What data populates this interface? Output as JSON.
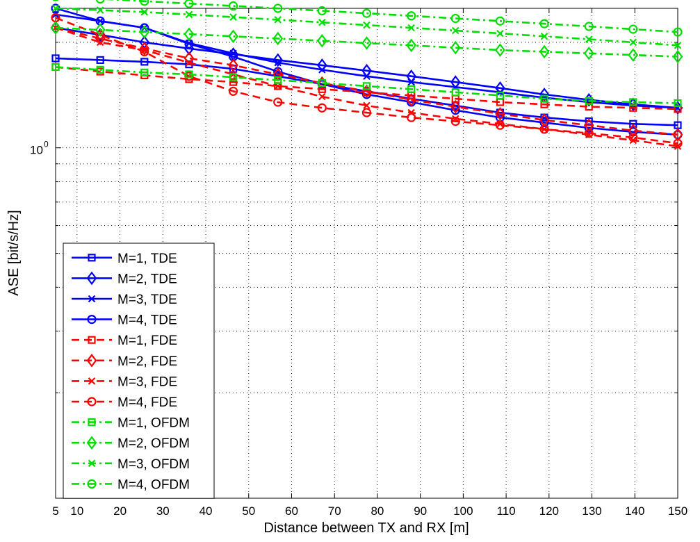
{
  "chart_data": {
    "type": "line",
    "xlabel": "Distance between TX and RX [m]",
    "ylabel": "ASE [bit/s/Hz]",
    "xlim": [
      5,
      150
    ],
    "ylim": [
      0.1,
      2.5
    ],
    "yscale": "log",
    "grid": true,
    "legend_position": "bottom-left",
    "x_ticks": [
      5,
      10,
      20,
      30,
      40,
      50,
      60,
      70,
      80,
      90,
      100,
      110,
      120,
      130,
      140,
      150
    ],
    "x_tick_labels": [
      "5",
      "10",
      "20",
      "30",
      "40",
      "50",
      "60",
      "70",
      "80",
      "90",
      "100",
      "110",
      "120",
      "130",
      "140",
      "150"
    ],
    "y_tick_label": {
      "base": "10",
      "exp": "0",
      "value": 1.0
    },
    "x": [
      5,
      15.4,
      25.7,
      36.1,
      46.4,
      56.8,
      67.1,
      77.5,
      87.9,
      98.2,
      108.6,
      118.9,
      129.3,
      139.6,
      150
    ],
    "series": [
      {
        "name": "M=1, TDE",
        "color": "#0000ff",
        "dash": "solid",
        "marker": "square",
        "values": [
          1.8,
          1.78,
          1.76,
          1.73,
          1.68,
          1.6,
          1.52,
          1.45,
          1.38,
          1.32,
          1.26,
          1.22,
          1.19,
          1.17,
          1.16
        ]
      },
      {
        "name": "M=2, TDE",
        "color": "#0000ff",
        "dash": "solid",
        "marker": "diamond",
        "values": [
          2.2,
          2.1,
          2.0,
          1.92,
          1.85,
          1.78,
          1.72,
          1.66,
          1.6,
          1.54,
          1.48,
          1.42,
          1.37,
          1.33,
          1.3
        ]
      },
      {
        "name": "M=3, TDE",
        "color": "#0000ff",
        "dash": "solid",
        "marker": "x",
        "values": [
          2.4,
          2.3,
          2.2,
          1.99,
          1.86,
          1.75,
          1.67,
          1.6,
          1.54,
          1.49,
          1.44,
          1.39,
          1.35,
          1.32,
          1.3
        ]
      },
      {
        "name": "M=4, TDE",
        "color": "#0000ff",
        "dash": "solid",
        "marker": "circle",
        "values": [
          2.5,
          2.3,
          2.2,
          1.98,
          1.82,
          1.65,
          1.52,
          1.42,
          1.35,
          1.28,
          1.22,
          1.18,
          1.14,
          1.11,
          1.09
        ]
      },
      {
        "name": "M=1, FDE",
        "color": "#ff0000",
        "dash": "dash",
        "marker": "square",
        "values": [
          1.7,
          1.65,
          1.61,
          1.57,
          1.54,
          1.5,
          1.47,
          1.44,
          1.41,
          1.38,
          1.35,
          1.33,
          1.31,
          1.3,
          1.29
        ]
      },
      {
        "name": "M=2, FDE",
        "color": "#ff0000",
        "dash": "dash",
        "marker": "diamond",
        "values": [
          2.2,
          2.05,
          1.92,
          1.8,
          1.72,
          1.62,
          1.53,
          1.45,
          1.37,
          1.31,
          1.25,
          1.2,
          1.16,
          1.12,
          1.09
        ]
      },
      {
        "name": "M=3, FDE",
        "color": "#ff0000",
        "dash": "dash",
        "marker": "x",
        "values": [
          2.2,
          2.0,
          1.9,
          1.75,
          1.62,
          1.5,
          1.4,
          1.32,
          1.26,
          1.21,
          1.17,
          1.13,
          1.09,
          1.05,
          1.01
        ]
      },
      {
        "name": "M=4, FDE",
        "color": "#ff0000",
        "dash": "dash",
        "marker": "circle",
        "values": [
          2.35,
          2.1,
          1.88,
          1.6,
          1.45,
          1.35,
          1.3,
          1.26,
          1.22,
          1.19,
          1.16,
          1.13,
          1.1,
          1.07,
          1.03
        ]
      },
      {
        "name": "M=1, OFDM",
        "color": "#00dd00",
        "dash": "dashdot",
        "marker": "square",
        "values": [
          1.7,
          1.67,
          1.64,
          1.62,
          1.59,
          1.56,
          1.53,
          1.5,
          1.47,
          1.44,
          1.41,
          1.38,
          1.36,
          1.35,
          1.34
        ]
      },
      {
        "name": "M=2, OFDM",
        "color": "#00dd00",
        "dash": "dashdot",
        "marker": "diamond",
        "values": [
          2.2,
          2.17,
          2.14,
          2.11,
          2.08,
          2.05,
          2.02,
          1.99,
          1.96,
          1.93,
          1.9,
          1.88,
          1.86,
          1.84,
          1.82
        ]
      },
      {
        "name": "M=3, OFDM",
        "color": "#00dd00",
        "dash": "dashdot",
        "marker": "x",
        "values": [
          2.5,
          2.47,
          2.44,
          2.4,
          2.36,
          2.32,
          2.28,
          2.24,
          2.2,
          2.16,
          2.12,
          2.08,
          2.04,
          2.0,
          1.96
        ]
      },
      {
        "name": "M=4, OFDM",
        "color": "#00dd00",
        "dash": "dashdot",
        "marker": "circle",
        "values": [
          2.7,
          2.66,
          2.62,
          2.58,
          2.54,
          2.5,
          2.46,
          2.42,
          2.38,
          2.34,
          2.3,
          2.26,
          2.22,
          2.18,
          2.14
        ]
      }
    ]
  }
}
